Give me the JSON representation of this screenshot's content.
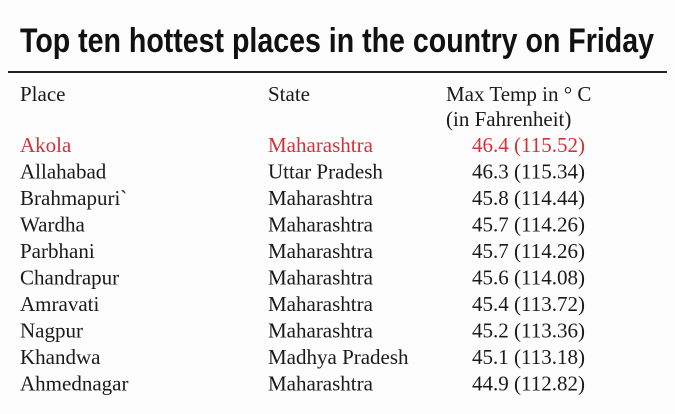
{
  "title": "Top ten hottest places in the country on Friday",
  "table": {
    "headers": {
      "place": "Place",
      "state": "State",
      "temp": "Max Temp in ° C",
      "temp_unit": "(in Fahrenheit)"
    },
    "rows": [
      [
        "Akola",
        "Maharashtra",
        "46.4 (115.52)"
      ],
      [
        "Allahabad",
        "Uttar Pradesh",
        "46.3 (115.34)"
      ],
      [
        "Brahmapuri`",
        "Maharashtra",
        "45.8 (114.44)"
      ],
      [
        "Wardha",
        "Maharashtra",
        "45.7 (114.26)"
      ],
      [
        "Parbhani",
        "Maharashtra",
        "45.7 (114.26)"
      ],
      [
        "Chandrapur",
        "Maharashtra",
        "45.6 (114.08)"
      ],
      [
        "Amravati",
        "Maharashtra",
        "45.4 (113.72)"
      ],
      [
        "Nagpur",
        "Maharashtra",
        "45.2 (113.36)"
      ],
      [
        "Khandwa",
        "Madhya Pradesh",
        "45.1 (113.18)"
      ],
      [
        "Ahmednagar",
        "Maharashtra",
        "44.9 (112.82)"
      ]
    ]
  }
}
